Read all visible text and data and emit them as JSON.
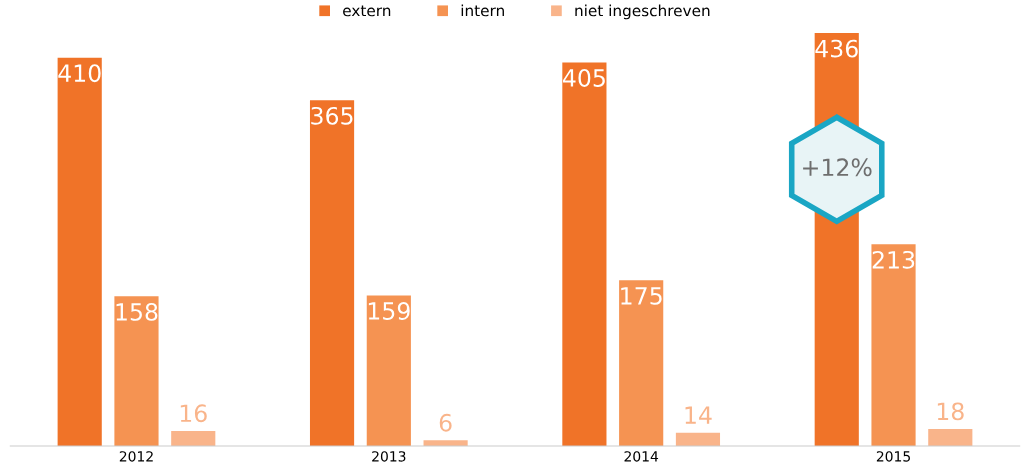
{
  "chart_data": {
    "type": "bar",
    "categories": [
      "2012",
      "2013",
      "2014",
      "2015"
    ],
    "series": [
      {
        "name": "extern",
        "color": "#f07328",
        "values": [
          410,
          365,
          405,
          436
        ]
      },
      {
        "name": "intern",
        "color": "#f59352",
        "values": [
          158,
          159,
          175,
          213
        ]
      },
      {
        "name": "niet ingeschreven",
        "color": "#f9b48a",
        "values": [
          16,
          6,
          14,
          18
        ]
      }
    ],
    "data_labels": true,
    "legend": "top",
    "grid": false,
    "tick_labels": "x",
    "annotations": [
      "+12%"
    ]
  }
}
